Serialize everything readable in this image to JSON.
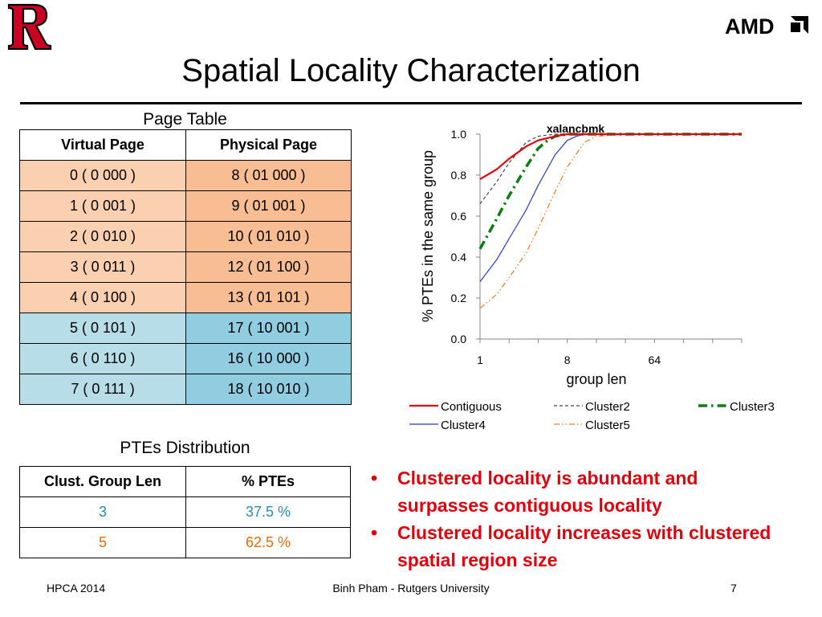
{
  "header": {
    "title": "Spatial Locality Characterization",
    "left_logo": "rutgers-r-logo",
    "right_logo_text": "AMD"
  },
  "page_table": {
    "caption": "Page Table",
    "headers": [
      "Virtual Page",
      "Physical Page"
    ],
    "rows": [
      [
        "0 ( 0 000 )",
        "8   ( 01 000 )"
      ],
      [
        "1 ( 0 001 )",
        "9   ( 01 001 )"
      ],
      [
        "2 ( 0 010 )",
        "10 ( 01 010 )"
      ],
      [
        "3 ( 0 011 )",
        "12 ( 01 100 )"
      ],
      [
        "4 ( 0 100 )",
        "13 ( 01 101 )"
      ],
      [
        "5 ( 0 101 )",
        "17 ( 10 001 )"
      ],
      [
        "6 ( 0 110 )",
        "16 ( 10 000 )"
      ],
      [
        "7 ( 0 111 )",
        "18 ( 10 010 )"
      ]
    ]
  },
  "ptes_distribution": {
    "caption": "PTEs Distribution",
    "headers": [
      "Clust. Group Len",
      "% PTEs"
    ],
    "rows": [
      {
        "len": "3",
        "pct": "37.5 %",
        "color": "#2e8bb0"
      },
      {
        "len": "5",
        "pct": "62.5 %",
        "color": "#e46c0a"
      }
    ]
  },
  "chart_data": {
    "type": "line",
    "title": "xalancbmk",
    "xlabel": "group len",
    "ylabel": "% PTEs in the same group",
    "x_scale": "log2",
    "x_ticks": [
      "1",
      "8",
      "64"
    ],
    "xlim": [
      1,
      512
    ],
    "ylim": [
      0,
      1
    ],
    "y_ticks": [
      "0.0",
      "0.2",
      "0.4",
      "0.6",
      "0.8",
      "1.0"
    ],
    "legend_position": "bottom",
    "series": [
      {
        "name": "Contiguous",
        "color": "#e3000f",
        "style": "solid",
        "width": 2.2,
        "x": [
          1,
          1.5,
          2,
          3,
          4,
          6,
          8,
          12,
          16,
          32,
          64,
          128,
          256,
          512
        ],
        "y": [
          0.78,
          0.83,
          0.88,
          0.94,
          0.97,
          0.99,
          1.0,
          1.0,
          1.0,
          1.0,
          1.0,
          1.0,
          1.0,
          1.0
        ]
      },
      {
        "name": "Cluster2",
        "color": "#444444",
        "style": "dash",
        "width": 1.2,
        "x": [
          1,
          1.5,
          2,
          3,
          4,
          6,
          8,
          16,
          32,
          64,
          128,
          256,
          512
        ],
        "y": [
          0.66,
          0.77,
          0.86,
          0.96,
          0.99,
          1.0,
          1.0,
          1.0,
          1.0,
          1.0,
          1.0,
          1.0,
          1.0
        ]
      },
      {
        "name": "Cluster3",
        "color": "#0e7d11",
        "style": "dashdot",
        "width": 3.5,
        "x": [
          1,
          1.5,
          2,
          3,
          4,
          5,
          6,
          8,
          16,
          32,
          64,
          128,
          256,
          512
        ],
        "y": [
          0.44,
          0.59,
          0.7,
          0.84,
          0.93,
          0.97,
          0.99,
          1.0,
          1.0,
          1.0,
          1.0,
          1.0,
          1.0,
          1.0
        ]
      },
      {
        "name": "Cluster4",
        "color": "#2a3bc4",
        "style": "solid",
        "width": 1.2,
        "x": [
          1,
          1.5,
          2,
          3,
          4,
          6,
          8,
          10,
          12,
          16,
          32,
          64,
          128,
          256,
          512
        ],
        "y": [
          0.28,
          0.39,
          0.49,
          0.63,
          0.75,
          0.9,
          0.97,
          0.99,
          1.0,
          1.0,
          1.0,
          1.0,
          1.0,
          1.0,
          1.0
        ]
      },
      {
        "name": "Cluster5",
        "color": "#f07a2a",
        "style": "dashdotdot",
        "width": 1.2,
        "x": [
          1,
          1.5,
          2,
          3,
          4,
          6,
          8,
          12,
          16,
          32,
          64,
          128,
          256,
          512
        ],
        "y": [
          0.15,
          0.22,
          0.3,
          0.42,
          0.54,
          0.72,
          0.84,
          0.96,
          0.99,
          1.0,
          1.0,
          1.0,
          1.0,
          1.0
        ]
      }
    ]
  },
  "bullets": [
    {
      "line1": "Clustered locality is abundant and",
      "line2": "surpasses contiguous locality"
    },
    {
      "line1": "Clustered locality increases with clustered",
      "line2": "spatial region size"
    }
  ],
  "footer": {
    "left": "HPCA 2014",
    "center": "Binh Pham - Rutgers University",
    "right": "7"
  }
}
